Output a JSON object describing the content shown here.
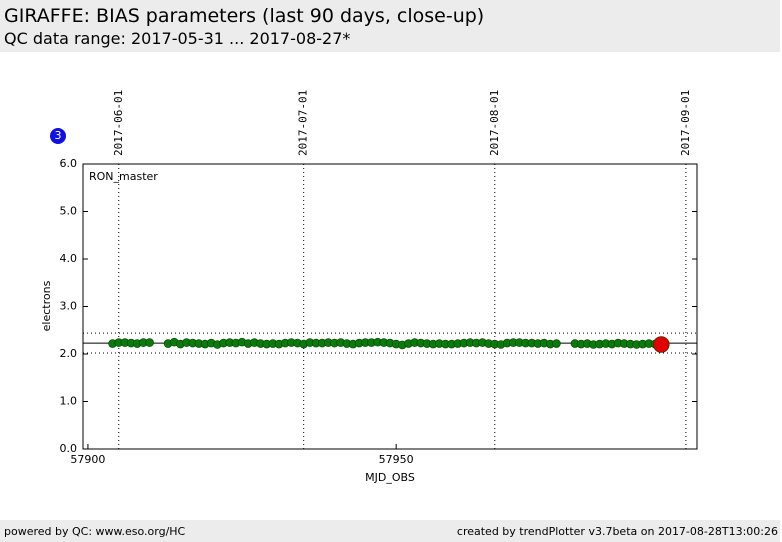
{
  "header": {
    "title": "GIRAFFE: BIAS parameters (last 90 days, close-up)",
    "subtitle": "QC data range: 2017-05-31 ... 2017-08-27*"
  },
  "badge": "3",
  "footer": {
    "left": "powered by QC: www.eso.org/HC",
    "right": "created by trendPlotter v3.7beta on 2017-08-28T13:00:26"
  },
  "chart_data": {
    "type": "scatter",
    "annotation": "RON_master",
    "x_label": "MJD_OBS",
    "y_label": "electrons",
    "xlim": [
      57899.2,
      57998.8
    ],
    "ylim": [
      0,
      6
    ],
    "xticks": [
      57900,
      57950
    ],
    "yticks": [
      {
        "value": 0,
        "label": "0.0"
      },
      {
        "value": 1,
        "label": "1.0"
      },
      {
        "value": 2,
        "label": "2.0"
      },
      {
        "value": 3,
        "label": "3.0"
      },
      {
        "value": 4,
        "label": "4.0"
      },
      {
        "value": 5,
        "label": "5.0"
      },
      {
        "value": 6,
        "label": "6.0"
      }
    ],
    "x2ticks": [
      {
        "value": 57905,
        "label": "2017-06-01"
      },
      {
        "value": 57935,
        "label": "2017-07-01"
      },
      {
        "value": 57966,
        "label": "2017-08-01"
      },
      {
        "value": 57997,
        "label": "2017-09-01"
      }
    ],
    "x2grid": true,
    "hlines": [
      {
        "value": 2.23,
        "style": "solid"
      },
      {
        "value": 2.44,
        "style": "dotted"
      },
      {
        "value": 2.02,
        "style": "dotted"
      }
    ],
    "series": [
      {
        "color": "#0a7a0a",
        "size": 4,
        "x": [
          57904,
          57905,
          57906,
          57907,
          57908,
          57909,
          57910,
          57913,
          57914,
          57915,
          57916,
          57917,
          57918,
          57919,
          57920,
          57921,
          57922,
          57923,
          57924,
          57925,
          57926,
          57927,
          57928,
          57929,
          57930,
          57931,
          57932,
          57933,
          57934,
          57935,
          57936,
          57937,
          57938,
          57939,
          57940,
          57941,
          57942,
          57943,
          57944,
          57945,
          57946,
          57947,
          57948,
          57949,
          57950,
          57951,
          57952,
          57953,
          57954,
          57955,
          57956,
          57957,
          57958,
          57959,
          57960,
          57961,
          57962,
          57963,
          57964,
          57965,
          57966,
          57967,
          57968,
          57969,
          57970,
          57971,
          57972,
          57973,
          57974,
          57975,
          57976,
          57979,
          57980,
          57981,
          57982,
          57983,
          57984,
          57985,
          57986,
          57987,
          57988,
          57989,
          57990,
          57991,
          57992
        ],
        "values": [
          2.22,
          2.24,
          2.24,
          2.23,
          2.22,
          2.24,
          2.24,
          2.22,
          2.25,
          2.21,
          2.24,
          2.23,
          2.22,
          2.21,
          2.23,
          2.2,
          2.23,
          2.24,
          2.23,
          2.25,
          2.22,
          2.24,
          2.22,
          2.21,
          2.22,
          2.21,
          2.23,
          2.24,
          2.23,
          2.21,
          2.24,
          2.23,
          2.23,
          2.24,
          2.23,
          2.24,
          2.22,
          2.21,
          2.23,
          2.24,
          2.24,
          2.25,
          2.24,
          2.23,
          2.21,
          2.19,
          2.22,
          2.24,
          2.23,
          2.22,
          2.21,
          2.22,
          2.21,
          2.21,
          2.22,
          2.23,
          2.24,
          2.23,
          2.24,
          2.22,
          2.21,
          2.2,
          2.23,
          2.24,
          2.24,
          2.23,
          2.23,
          2.22,
          2.23,
          2.21,
          2.22,
          2.22,
          2.21,
          2.22,
          2.2,
          2.21,
          2.22,
          2.21,
          2.23,
          2.22,
          2.21,
          2.2,
          2.21,
          2.22,
          2.21
        ]
      },
      {
        "color": "#e00000",
        "size": 8,
        "x": [
          57993
        ],
        "values": [
          2.2
        ]
      }
    ]
  }
}
